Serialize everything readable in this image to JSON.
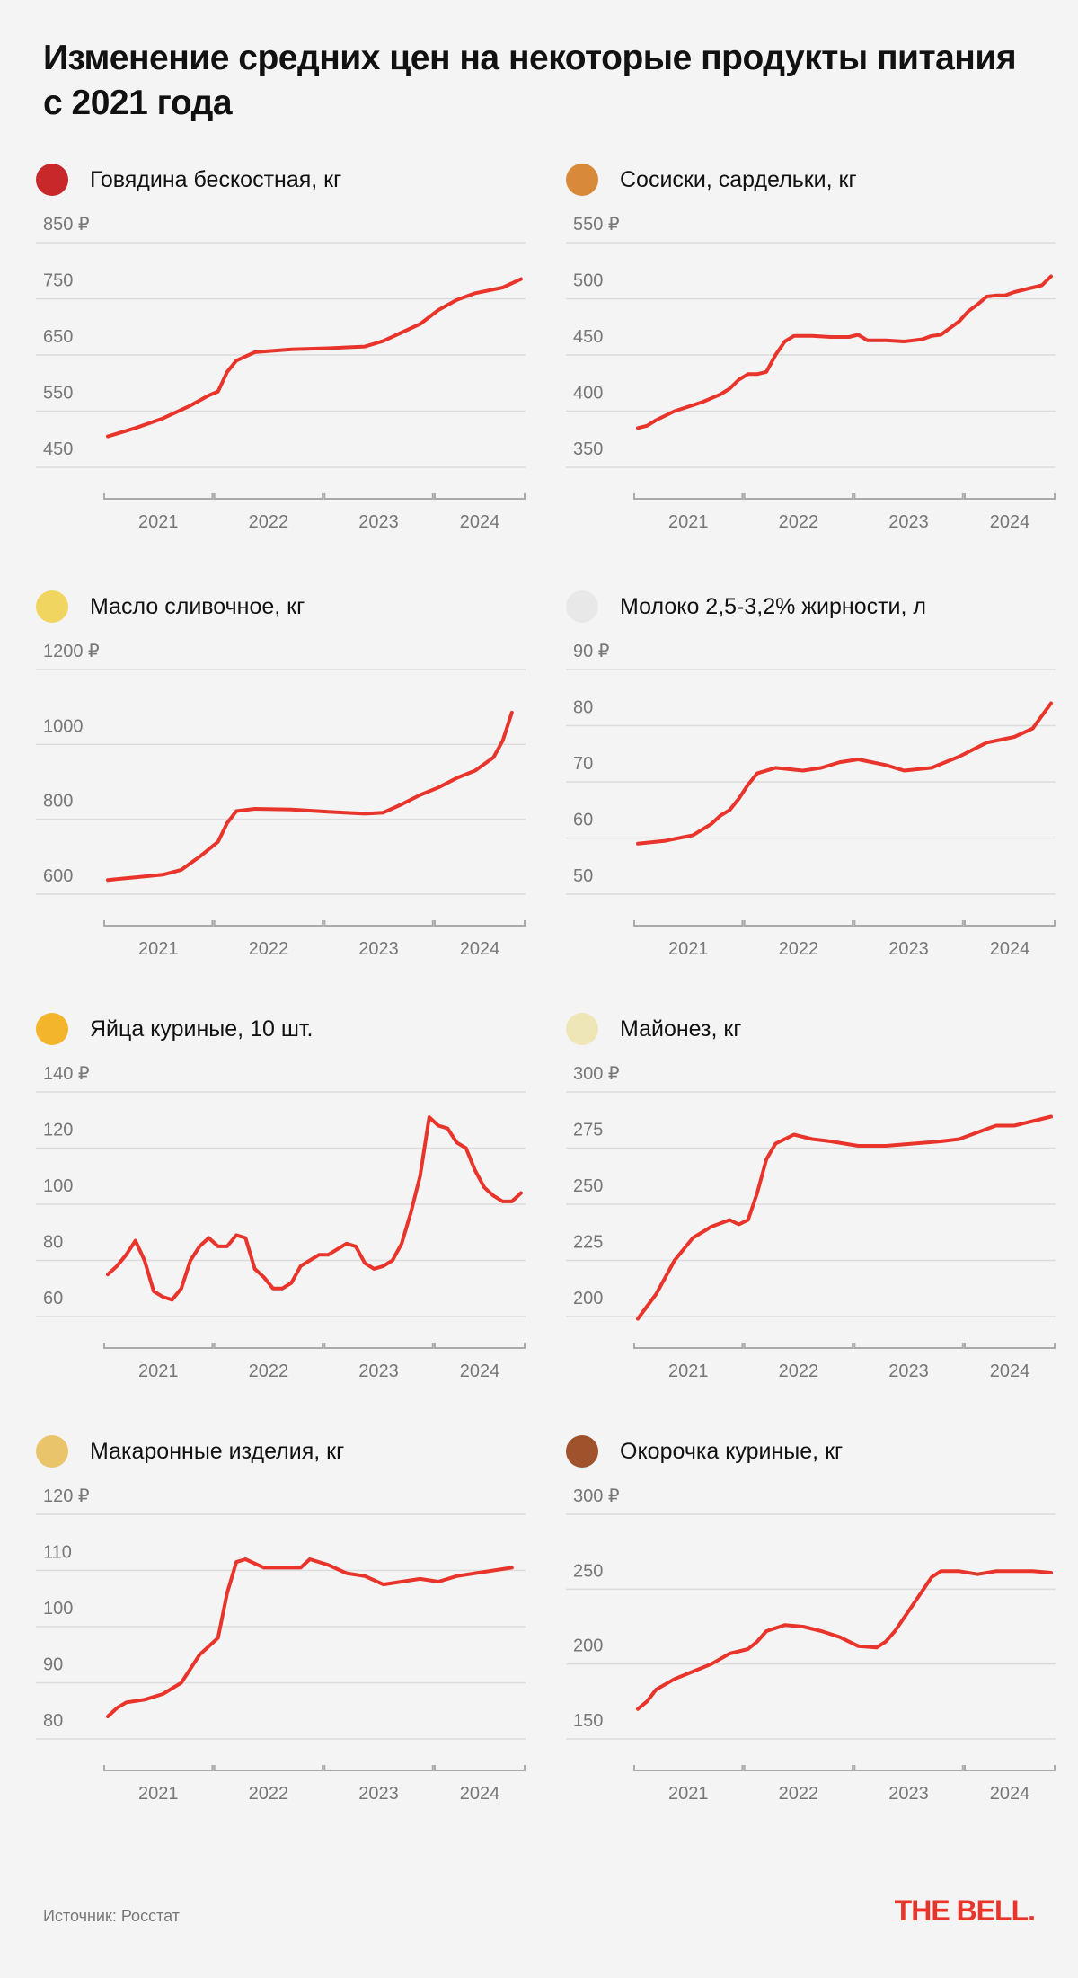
{
  "title": "Изменение средних цен на некоторые продукты питания с 2021 года",
  "source": "Источник: Росстат",
  "logo": "THE BELL.",
  "colors": {
    "line": "#e8342a",
    "grid": "#dcdcdc",
    "axis_text": "#777777",
    "background": "#f4f4f4"
  },
  "chart_data": [
    {
      "type": "line",
      "title": "Говядина бескостная, кг",
      "icon": "steak-icon",
      "ylim": [
        450,
        850
      ],
      "yticks": [
        450,
        550,
        650,
        750,
        850
      ],
      "currency": "₽",
      "years": [
        "2021",
        "2022",
        "2023",
        "2024"
      ],
      "points": [
        [
          0,
          505
        ],
        [
          3,
          520
        ],
        [
          6,
          537
        ],
        [
          9,
          560
        ],
        [
          11,
          578
        ],
        [
          12,
          585
        ],
        [
          13,
          620
        ],
        [
          14,
          640
        ],
        [
          16,
          655
        ],
        [
          20,
          660
        ],
        [
          24,
          662
        ],
        [
          28,
          665
        ],
        [
          30,
          675
        ],
        [
          32,
          690
        ],
        [
          34,
          705
        ],
        [
          36,
          730
        ],
        [
          38,
          748
        ],
        [
          40,
          760
        ],
        [
          43,
          770
        ],
        [
          45,
          785
        ]
      ]
    },
    {
      "type": "line",
      "title": "Сосиски, сардельки, кг",
      "icon": "hotdog-icon",
      "ylim": [
        350,
        550
      ],
      "yticks": [
        350,
        400,
        450,
        500,
        550
      ],
      "currency": "₽",
      "years": [
        "2021",
        "2022",
        "2023",
        "2024"
      ],
      "points": [
        [
          0,
          385
        ],
        [
          1,
          387
        ],
        [
          2,
          392
        ],
        [
          4,
          400
        ],
        [
          7,
          408
        ],
        [
          9,
          415
        ],
        [
          10,
          420
        ],
        [
          11,
          428
        ],
        [
          12,
          433
        ],
        [
          13,
          433
        ],
        [
          14,
          435
        ],
        [
          15,
          450
        ],
        [
          16,
          462
        ],
        [
          17,
          467
        ],
        [
          19,
          467
        ],
        [
          21,
          466
        ],
        [
          23,
          466
        ],
        [
          24,
          468
        ],
        [
          25,
          463
        ],
        [
          27,
          463
        ],
        [
          29,
          462
        ],
        [
          31,
          464
        ],
        [
          32,
          467
        ],
        [
          33,
          468
        ],
        [
          34,
          474
        ],
        [
          35,
          480
        ],
        [
          36,
          489
        ],
        [
          37,
          495
        ],
        [
          38,
          502
        ],
        [
          39,
          503
        ],
        [
          40,
          503
        ],
        [
          41,
          506
        ],
        [
          42,
          508
        ],
        [
          43,
          510
        ],
        [
          44,
          512
        ],
        [
          45,
          520
        ]
      ]
    },
    {
      "type": "line",
      "title": "Масло сливочное, кг",
      "icon": "butter-icon",
      "ylim": [
        600,
        1200
      ],
      "yticks": [
        600,
        800,
        1000,
        1200
      ],
      "currency": "₽",
      "years": [
        "2021",
        "2022",
        "2023",
        "2024"
      ],
      "points": [
        [
          0,
          638
        ],
        [
          3,
          645
        ],
        [
          6,
          652
        ],
        [
          8,
          665
        ],
        [
          10,
          700
        ],
        [
          12,
          740
        ],
        [
          13,
          790
        ],
        [
          14,
          822
        ],
        [
          16,
          828
        ],
        [
          20,
          826
        ],
        [
          24,
          820
        ],
        [
          28,
          815
        ],
        [
          30,
          818
        ],
        [
          32,
          840
        ],
        [
          34,
          865
        ],
        [
          36,
          885
        ],
        [
          38,
          910
        ],
        [
          40,
          930
        ],
        [
          42,
          965
        ],
        [
          43,
          1010
        ],
        [
          44,
          1085
        ]
      ]
    },
    {
      "type": "line",
      "title": "Молоко 2,5-3,2% жирности, л",
      "icon": "milk-icon",
      "ylim": [
        50,
        90
      ],
      "yticks": [
        50,
        60,
        70,
        80,
        90
      ],
      "currency": "₽",
      "years": [
        "2021",
        "2022",
        "2023",
        "2024"
      ],
      "points": [
        [
          0,
          59
        ],
        [
          3,
          59.5
        ],
        [
          6,
          60.5
        ],
        [
          8,
          62.5
        ],
        [
          9,
          64
        ],
        [
          10,
          65
        ],
        [
          11,
          67
        ],
        [
          12,
          69.5
        ],
        [
          13,
          71.5
        ],
        [
          15,
          72.5
        ],
        [
          18,
          72
        ],
        [
          20,
          72.5
        ],
        [
          22,
          73.5
        ],
        [
          24,
          74
        ],
        [
          27,
          73
        ],
        [
          29,
          72
        ],
        [
          32,
          72.5
        ],
        [
          35,
          74.5
        ],
        [
          38,
          77
        ],
        [
          41,
          78
        ],
        [
          43,
          79.5
        ],
        [
          45,
          84
        ]
      ]
    },
    {
      "type": "line",
      "title": "Яйца куриные, 10 шт.",
      "icon": "fried-egg-icon",
      "ylim": [
        60,
        140
      ],
      "yticks": [
        60,
        80,
        100,
        120,
        140
      ],
      "currency": "₽",
      "years": [
        "2021",
        "2022",
        "2023",
        "2024"
      ],
      "points": [
        [
          0,
          75
        ],
        [
          1,
          78
        ],
        [
          2,
          82
        ],
        [
          3,
          87
        ],
        [
          4,
          80
        ],
        [
          5,
          69
        ],
        [
          6,
          67
        ],
        [
          7,
          66
        ],
        [
          8,
          70
        ],
        [
          9,
          80
        ],
        [
          10,
          85
        ],
        [
          11,
          88
        ],
        [
          12,
          85
        ],
        [
          13,
          85
        ],
        [
          14,
          89
        ],
        [
          15,
          88
        ],
        [
          16,
          77
        ],
        [
          17,
          74
        ],
        [
          18,
          70
        ],
        [
          19,
          70
        ],
        [
          20,
          72
        ],
        [
          21,
          78
        ],
        [
          22,
          80
        ],
        [
          23,
          82
        ],
        [
          24,
          82
        ],
        [
          25,
          84
        ],
        [
          26,
          86
        ],
        [
          27,
          85
        ],
        [
          28,
          79
        ],
        [
          29,
          77
        ],
        [
          30,
          78
        ],
        [
          31,
          80
        ],
        [
          32,
          86
        ],
        [
          33,
          97
        ],
        [
          34,
          110
        ],
        [
          35,
          131
        ],
        [
          36,
          128
        ],
        [
          37,
          127
        ],
        [
          38,
          122
        ],
        [
          39,
          120
        ],
        [
          40,
          112
        ],
        [
          41,
          106
        ],
        [
          42,
          103
        ],
        [
          43,
          101
        ],
        [
          44,
          101
        ],
        [
          45,
          104
        ]
      ]
    },
    {
      "type": "line",
      "title": "Майонез, кг",
      "icon": "mayonnaise-jar-icon",
      "ylim": [
        200,
        300
      ],
      "yticks": [
        200,
        225,
        250,
        275,
        300
      ],
      "currency": "₽",
      "years": [
        "2021",
        "2022",
        "2023",
        "2024"
      ],
      "points": [
        [
          0,
          199
        ],
        [
          2,
          210
        ],
        [
          4,
          225
        ],
        [
          6,
          235
        ],
        [
          8,
          240
        ],
        [
          10,
          243
        ],
        [
          11,
          241
        ],
        [
          12,
          243
        ],
        [
          13,
          255
        ],
        [
          14,
          270
        ],
        [
          15,
          277
        ],
        [
          17,
          281
        ],
        [
          19,
          279
        ],
        [
          21,
          278
        ],
        [
          24,
          276
        ],
        [
          27,
          276
        ],
        [
          30,
          277
        ],
        [
          33,
          278
        ],
        [
          35,
          279
        ],
        [
          37,
          282
        ],
        [
          39,
          285
        ],
        [
          41,
          285
        ],
        [
          43,
          287
        ],
        [
          45,
          289
        ]
      ]
    },
    {
      "type": "line",
      "title": "Макаронные изделия, кг",
      "icon": "spaghetti-icon",
      "ylim": [
        80,
        120
      ],
      "yticks": [
        80,
        90,
        100,
        110,
        120
      ],
      "currency": "₽",
      "years": [
        "2021",
        "2022",
        "2023",
        "2024"
      ],
      "points": [
        [
          0,
          84
        ],
        [
          1,
          85.5
        ],
        [
          2,
          86.5
        ],
        [
          4,
          87
        ],
        [
          6,
          88
        ],
        [
          8,
          90
        ],
        [
          10,
          95
        ],
        [
          12,
          98
        ],
        [
          13,
          106
        ],
        [
          14,
          111.5
        ],
        [
          15,
          112
        ],
        [
          17,
          110.5
        ],
        [
          19,
          110.5
        ],
        [
          21,
          110.5
        ],
        [
          22,
          112
        ],
        [
          24,
          111
        ],
        [
          26,
          109.5
        ],
        [
          28,
          109
        ],
        [
          30,
          107.5
        ],
        [
          32,
          108
        ],
        [
          34,
          108.5
        ],
        [
          36,
          108
        ],
        [
          38,
          109
        ],
        [
          40,
          109.5
        ],
        [
          42,
          110
        ],
        [
          44,
          110.5
        ]
      ]
    },
    {
      "type": "line",
      "title": "Окорочка куриные, кг",
      "icon": "poultry-leg-icon",
      "ylim": [
        150,
        300
      ],
      "yticks": [
        150,
        200,
        250,
        300
      ],
      "currency": "₽",
      "years": [
        "2021",
        "2022",
        "2023",
        "2024"
      ],
      "points": [
        [
          0,
          170
        ],
        [
          1,
          175
        ],
        [
          2,
          183
        ],
        [
          4,
          190
        ],
        [
          6,
          195
        ],
        [
          8,
          200
        ],
        [
          10,
          207
        ],
        [
          12,
          210
        ],
        [
          13,
          215
        ],
        [
          14,
          222
        ],
        [
          16,
          226
        ],
        [
          18,
          225
        ],
        [
          20,
          222
        ],
        [
          22,
          218
        ],
        [
          24,
          212
        ],
        [
          26,
          211
        ],
        [
          27,
          215
        ],
        [
          28,
          222
        ],
        [
          30,
          240
        ],
        [
          32,
          258
        ],
        [
          33,
          262
        ],
        [
          35,
          262
        ],
        [
          37,
          260
        ],
        [
          39,
          262
        ],
        [
          41,
          262
        ],
        [
          43,
          262
        ],
        [
          45,
          261
        ]
      ]
    }
  ]
}
